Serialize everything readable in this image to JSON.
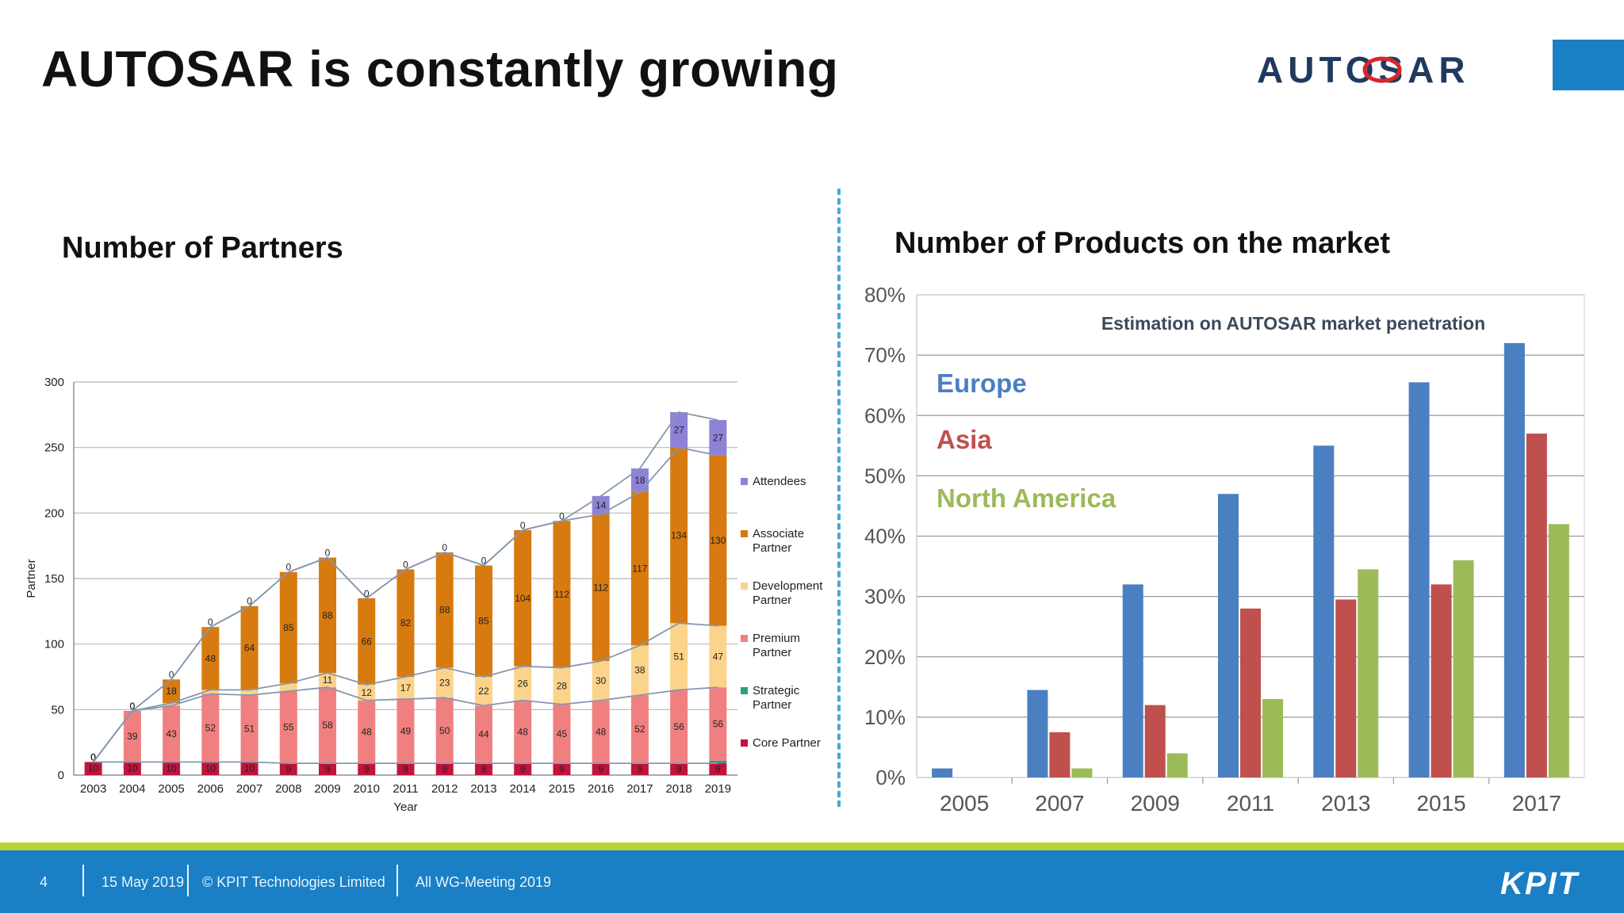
{
  "slide": {
    "title": "AUTOSAR is constantly growing",
    "logo_text": "AUTOSAR",
    "left_title": "Number of Partners",
    "right_title": "Number of Products on the market"
  },
  "footer": {
    "page_number": "4",
    "date": "15 May 2019",
    "copyright": "© KPIT Technologies Limited",
    "event": "All WG-Meeting 2019",
    "logo": "KPIT"
  },
  "colors": {
    "brand_blue": "#1a7fc4",
    "accent_green": "#b6d43a"
  },
  "chart_data": [
    {
      "type": "bar",
      "stacked": true,
      "title": "Number of Partners",
      "xlabel": "Year",
      "ylabel": "Partner",
      "ylim": [
        0,
        300
      ],
      "yticks": [
        0,
        50,
        100,
        150,
        200,
        250,
        300
      ],
      "grid": true,
      "legend": "right",
      "categories": [
        "2003",
        "2004",
        "2005",
        "2006",
        "2007",
        "2008",
        "2009",
        "2010",
        "2011",
        "2012",
        "2013",
        "2014",
        "2015",
        "2016",
        "2017",
        "2018",
        "2019"
      ],
      "series": [
        {
          "name": "Core Partner",
          "color": "#c0143c",
          "values": [
            10,
            10,
            10,
            10,
            10,
            9,
            9,
            9,
            9,
            9,
            9,
            9,
            9,
            9,
            9,
            9,
            9
          ]
        },
        {
          "name": "Strategic Partner",
          "color": "#2f9e7f",
          "values": [
            0,
            0,
            0,
            0,
            0,
            0,
            0,
            0,
            0,
            0,
            0,
            0,
            0,
            0,
            0,
            0,
            2
          ]
        },
        {
          "name": "Premium Partner",
          "color": "#f08080",
          "values": [
            0,
            39,
            43,
            52,
            51,
            55,
            58,
            48,
            49,
            50,
            44,
            48,
            45,
            48,
            52,
            56,
            56
          ]
        },
        {
          "name": "Development Partner",
          "color": "#fbd38a",
          "values": [
            0,
            0,
            2,
            3,
            4,
            6,
            11,
            12,
            17,
            23,
            22,
            26,
            28,
            30,
            38,
            51,
            47
          ]
        },
        {
          "name": "Associate Partner",
          "color": "#d77a10",
          "values": [
            0,
            0,
            18,
            48,
            64,
            85,
            88,
            66,
            82,
            88,
            85,
            104,
            112,
            112,
            117,
            134,
            130
          ]
        },
        {
          "name": "Attendees",
          "color": "#8e82d8",
          "values": [
            0,
            0,
            0,
            0,
            0,
            0,
            0,
            0,
            0,
            0,
            0,
            0,
            0,
            14,
            18,
            27,
            27
          ]
        }
      ]
    },
    {
      "type": "bar",
      "title": "Estimation on AUTOSAR market penetration",
      "xlabel": "",
      "ylabel": "",
      "ylim": [
        0,
        80
      ],
      "yticks": [
        "0%",
        "10%",
        "20%",
        "30%",
        "40%",
        "50%",
        "60%",
        "70%",
        "80%"
      ],
      "grid": true,
      "legend": "top-left",
      "categories": [
        "2005",
        "2007",
        "2009",
        "2011",
        "2013",
        "2015",
        "2017"
      ],
      "series": [
        {
          "name": "Europe",
          "color": "#4a7fc1",
          "values": [
            1.5,
            14.5,
            32,
            47,
            55,
            65.5,
            72
          ]
        },
        {
          "name": "Asia",
          "color": "#c0504d",
          "values": [
            0,
            7.5,
            12,
            28,
            29.5,
            32,
            57
          ]
        },
        {
          "name": "North America",
          "color": "#9bbb59",
          "values": [
            0,
            1.5,
            4,
            13,
            34.5,
            36,
            42
          ]
        }
      ]
    }
  ]
}
